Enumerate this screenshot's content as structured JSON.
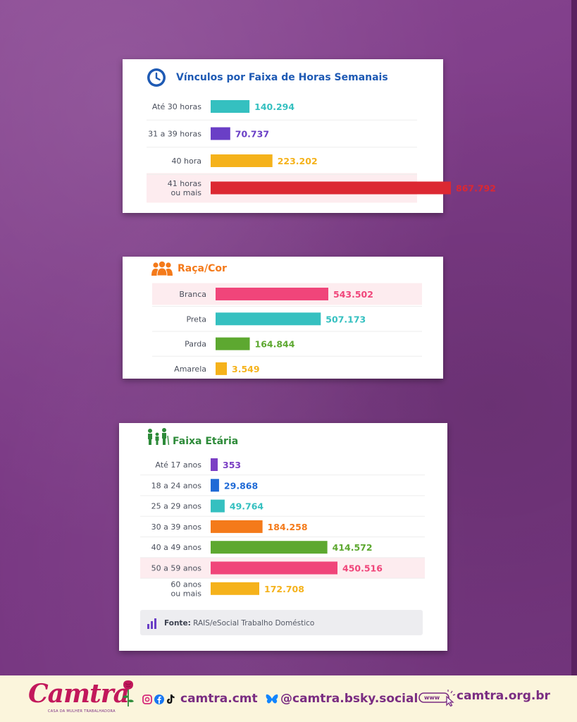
{
  "chart_data": [
    {
      "type": "bar",
      "orientation": "horizontal",
      "title": "Vínculos por Faixa de Horas Semanais",
      "categories": [
        [
          "Até 30 horas"
        ],
        [
          "31 a 39 horas"
        ],
        [
          "40 hora"
        ],
        [
          "41 horas",
          "ou mais"
        ]
      ],
      "values": [
        140294,
        70737,
        223202,
        867792
      ],
      "value_labels": [
        "140.294",
        "70.737",
        "223.202",
        "867.792"
      ],
      "colors": [
        "#35c0c0",
        "#6a3fc6",
        "#f5b21b",
        "#dc2832"
      ],
      "highlight_index": 3
    },
    {
      "type": "bar",
      "orientation": "horizontal",
      "title": "Raça/Cor",
      "categories": [
        [
          "Branca"
        ],
        [
          "Preta"
        ],
        [
          "Parda"
        ],
        [
          "Amarela"
        ]
      ],
      "values": [
        543502,
        507173,
        164844,
        3549
      ],
      "value_labels": [
        "543.502",
        "507.173",
        "164.844",
        "3.549"
      ],
      "colors": [
        "#f0457a",
        "#35c0c0",
        "#5da830",
        "#f5b21b"
      ],
      "highlight_index": 0
    },
    {
      "type": "bar",
      "orientation": "horizontal",
      "title": "Faixa Etária",
      "categories": [
        [
          "Até 17 anos"
        ],
        [
          "18 a 24 anos"
        ],
        [
          "25 a 29 anos"
        ],
        [
          "30 a 39 anos"
        ],
        [
          "40 a 49 anos"
        ],
        [
          "50 a 59 anos"
        ],
        [
          "60 anos",
          "ou mais"
        ]
      ],
      "values": [
        353,
        29868,
        49764,
        184258,
        414572,
        450516,
        172708
      ],
      "value_labels": [
        "353",
        "29.868",
        "49.764",
        "184.258",
        "414.572",
        "450.516",
        "172.708"
      ],
      "colors": [
        "#7b3fc4",
        "#1f6ad6",
        "#35c0c0",
        "#f47a1a",
        "#5da830",
        "#f0457a",
        "#f5b21b"
      ],
      "highlight_index": 5
    }
  ],
  "source": {
    "label": "Fonte:",
    "text": "RAIS/eSocial Trabalho Doméstico"
  },
  "footer": {
    "logo": "Camtra",
    "tagline": "CASA DA MULHER TRABALHADORA",
    "instagram_handle": "camtra.cmt",
    "bluesky_handle": "@camtra.bsky.social",
    "website_prefix": "www",
    "website": "camtra.org.br"
  },
  "colors": {
    "background": "#7f3d88",
    "footer_bg": "#fbf5dc",
    "footer_text": "#7a2d82",
    "logo": "#c2185b",
    "title_hours": "#1e5ab4",
    "title_race": "#f47a1a",
    "title_age": "#2e8b3a",
    "row_highlight": "#fdecef"
  },
  "icons": {
    "hours": "clock-icon",
    "race": "people-group-icon",
    "age": "family-icon",
    "source": "bar-chart-icon",
    "instagram": "instagram-icon",
    "facebook": "facebook-icon",
    "tiktok": "tiktok-icon",
    "bluesky": "butterfly-icon",
    "website": "cursor-click-icon",
    "logo_flower": "rose-icon"
  }
}
